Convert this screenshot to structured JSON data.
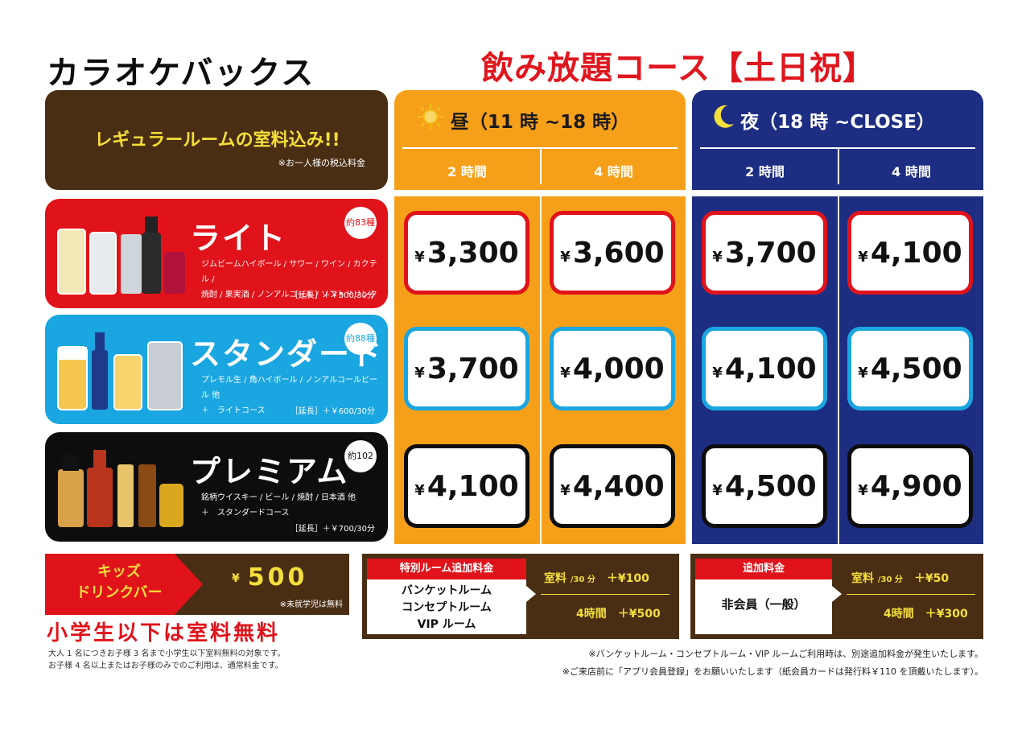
{
  "header": {
    "logo": "カラオケバックス",
    "title": "飲み放題コース【土日祝】",
    "box_main": "レギュラールームの室料込み!!",
    "box_note": "※お一人様の税込料金"
  },
  "periods": {
    "day": {
      "title": "昼（11 時 ~18 時）",
      "dur1": "2 時間",
      "dur2": "4 時間"
    },
    "night": {
      "title": "夜（18 時 ~CLOSE）",
      "dur1": "2 時間",
      "dur2": "4 時間"
    }
  },
  "courses": {
    "light": {
      "name": "ライト",
      "badge": "約83種",
      "desc1": "ジムビームハイボール / サワー / ワイン / カクテル /",
      "desc2": "焼酎 / 果実酒 / ノンアルコール / ソフトドリンク",
      "ext": "［延長］＋￥500/30分",
      "prices": [
        "3,300",
        "3,600",
        "3,700",
        "4,100"
      ]
    },
    "standard": {
      "name": "スタンダード",
      "badge": "約88種",
      "desc1": "プレモル生 / 角ハイボール / ノンアルコールビール 他",
      "desc2": "＋　ライトコース",
      "ext": "［延長］＋￥600/30分",
      "prices": [
        "3,700",
        "4,000",
        "4,100",
        "4,500"
      ]
    },
    "premium": {
      "name": "プレミアム",
      "badge": "約102種",
      "desc1": "銘柄ウイスキー / ビール / 焼酎 / 日本酒 他",
      "desc2": "＋　スタンダードコース",
      "ext": "［延長］＋￥700/30分",
      "prices": [
        "4,100",
        "4,400",
        "4,500",
        "4,900"
      ]
    }
  },
  "yen": "¥",
  "kids": {
    "label1": "キッズ",
    "label2": "ドリンクバー",
    "yen": "¥",
    "price": "500",
    "note": "※未就学児は無料",
    "free": "小学生以下は室料無料",
    "sub1": "大人 1 名につきお子様 3 名まで小学生以下室料無料の対象です。",
    "sub2": "お子様 4 名以上またはお子様のみでのご利用は、通常料金です。"
  },
  "special_room": {
    "head": "特別ルーム追加料金",
    "name1": "バンケットルーム",
    "name2": "コンセプトルーム",
    "name3": "VIP ルーム",
    "rate1_label": "室料",
    "rate1_unit": "/30 分",
    "rate1": "＋¥100",
    "rate2_label": "4時間",
    "rate2": "＋¥500"
  },
  "extra_fee": {
    "head": "追加料金",
    "name": "非会員（一般）",
    "rate1_label": "室料",
    "rate1_unit": "/30 分",
    "rate1": "＋¥50",
    "rate2_label": "4時間",
    "rate2": "＋¥300"
  },
  "footer": {
    "note1": "※バンケットルーム・コンセプトルーム・VIP ルームご利用時は、別途追加料金が発生いたします。",
    "note2": "※ご来店前に「アプリ会員登録」をお願いいたします（紙会員カードは発行料￥110 を頂戴いたします）。"
  },
  "colors": {
    "red": "#e0131b",
    "blue": "#1aa6e0",
    "orange": "#f6a01a",
    "navy": "#1d2d82",
    "brown": "#4a2e14",
    "yellow": "#f5df3a"
  }
}
